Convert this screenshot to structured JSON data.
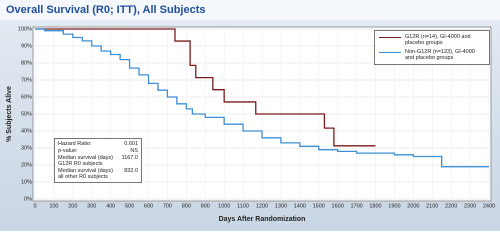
{
  "chart_data": {
    "type": "step",
    "title": "Overall Survival (R0; ITT), All Subjects",
    "x_label": "Days After Randomization",
    "y_label": "% Subjects Alive",
    "xlim": [
      0,
      2400
    ],
    "xticks": [
      0,
      100,
      200,
      300,
      400,
      500,
      600,
      700,
      800,
      900,
      1000,
      1100,
      1200,
      1300,
      1400,
      1500,
      1600,
      1700,
      1800,
      1900,
      2000,
      2100,
      2200,
      2300,
      2400
    ],
    "ylim": [
      0,
      100
    ],
    "yticks": [
      {
        "value": 0,
        "label": "0%"
      },
      {
        "value": 10,
        "label": "10%"
      },
      {
        "value": 20,
        "label": "20%"
      },
      {
        "value": 30,
        "label": "30%"
      },
      {
        "value": 40,
        "label": "40%"
      },
      {
        "value": 50,
        "label": "50%"
      },
      {
        "value": 60,
        "label": "60%"
      },
      {
        "value": 70,
        "label": "70%"
      },
      {
        "value": 80,
        "label": "80%"
      },
      {
        "value": 90,
        "label": "90%"
      },
      {
        "value": 100,
        "label": "100%"
      }
    ],
    "grid": true,
    "legend": "upper right",
    "series": [
      {
        "name": "G12R (n=14), GI-4000 and placebo groups",
        "color": "#7a1a1a",
        "x": [
          0,
          740,
          820,
          850,
          940,
          1000,
          1167,
          1530,
          1580,
          1800
        ],
        "values": [
          100,
          92.9,
          78.6,
          71.4,
          64.3,
          57.1,
          50,
          41.7,
          31.3,
          31.3
        ]
      },
      {
        "name": "Non-G12R (n=123), GI-4000 and placebo groups",
        "color": "#3d8fd6",
        "x": [
          0,
          50,
          150,
          200,
          250,
          300,
          350,
          400,
          450,
          500,
          550,
          600,
          650,
          700,
          750,
          800,
          832,
          900,
          1000,
          1100,
          1200,
          1300,
          1400,
          1500,
          1600,
          1700,
          1900,
          2000,
          2150,
          2400
        ],
        "values": [
          100,
          99,
          97,
          95,
          93,
          90,
          87,
          85,
          82,
          77,
          73,
          68,
          64,
          60,
          56,
          53,
          50,
          48,
          44,
          40,
          36,
          33,
          31,
          29,
          28,
          27,
          26,
          25,
          19,
          19
        ]
      }
    ],
    "stats": [
      {
        "label": "Hazard Ratio:",
        "value": "0.601"
      },
      {
        "label": "p-value:",
        "value": "NS"
      },
      {
        "label": "Median survival (days) G12R R0 subjects",
        "value": "1167.0"
      },
      {
        "label": "Median survival (days) all other R0 subjects",
        "value": "832.0"
      }
    ]
  }
}
